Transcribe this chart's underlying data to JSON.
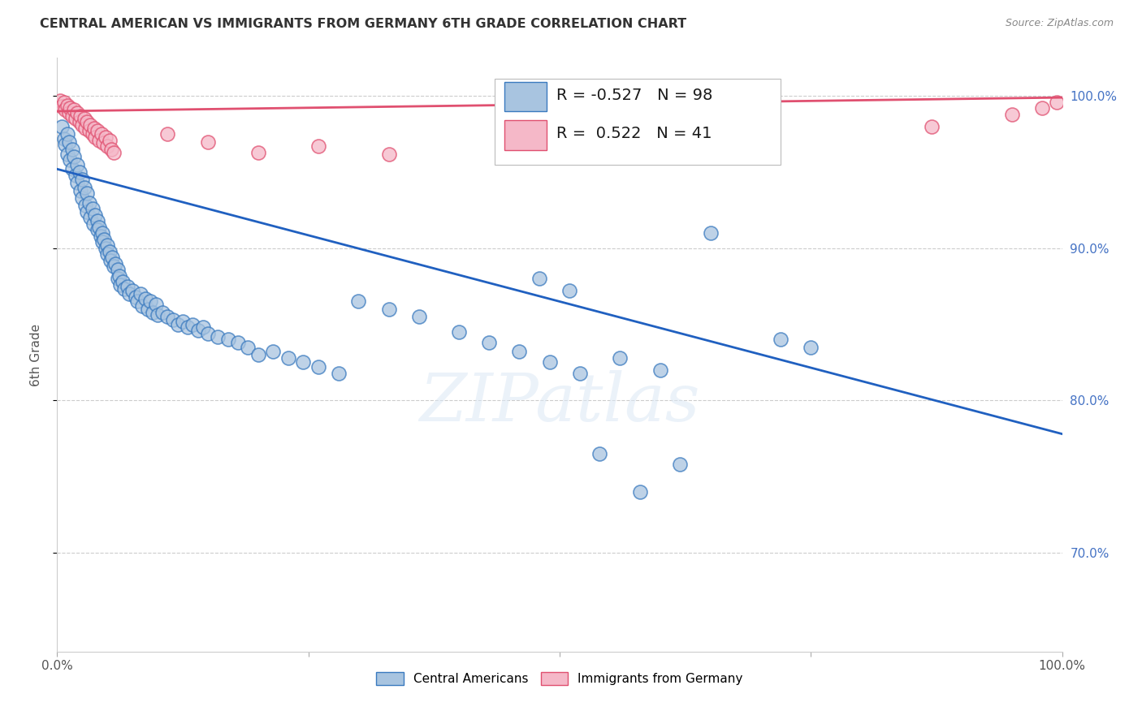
{
  "title": "CENTRAL AMERICAN VS IMMIGRANTS FROM GERMANY 6TH GRADE CORRELATION CHART",
  "source": "Source: ZipAtlas.com",
  "ylabel": "6th Grade",
  "xlim": [
    0.0,
    1.0
  ],
  "ylim": [
    0.635,
    1.025
  ],
  "yticks": [
    0.7,
    0.8,
    0.9,
    1.0
  ],
  "ytick_labels": [
    "70.0%",
    "80.0%",
    "90.0%",
    "100.0%"
  ],
  "xticks": [
    0.0,
    0.25,
    0.5,
    0.75,
    1.0
  ],
  "xtick_labels": [
    "0.0%",
    "",
    "",
    "",
    "100.0%"
  ],
  "r_blue": -0.527,
  "n_blue": 98,
  "r_pink": 0.522,
  "n_pink": 41,
  "blue_color": "#a8c4e0",
  "blue_edge_color": "#3a7abf",
  "pink_color": "#f5b8c8",
  "pink_edge_color": "#e05070",
  "blue_line_color": "#2060c0",
  "pink_line_color": "#e05070",
  "watermark": "ZIPatlas",
  "legend_label_blue": "Central Americans",
  "legend_label_pink": "Immigrants from Germany",
  "blue_line_x0": 0.0,
  "blue_line_y0": 0.952,
  "blue_line_x1": 1.0,
  "blue_line_y1": 0.778,
  "pink_line_x0": 0.0,
  "pink_line_y0": 0.99,
  "pink_line_x1": 1.0,
  "pink_line_y1": 0.999,
  "blue_x": [
    0.005,
    0.007,
    0.008,
    0.01,
    0.01,
    0.012,
    0.013,
    0.015,
    0.015,
    0.017,
    0.018,
    0.02,
    0.02,
    0.022,
    0.023,
    0.025,
    0.025,
    0.027,
    0.028,
    0.03,
    0.03,
    0.032,
    0.033,
    0.035,
    0.036,
    0.038,
    0.04,
    0.04,
    0.042,
    0.043,
    0.045,
    0.045,
    0.047,
    0.048,
    0.05,
    0.05,
    0.052,
    0.053,
    0.055,
    0.056,
    0.058,
    0.06,
    0.06,
    0.062,
    0.063,
    0.065,
    0.067,
    0.07,
    0.072,
    0.075,
    0.078,
    0.08,
    0.083,
    0.085,
    0.088,
    0.09,
    0.093,
    0.095,
    0.098,
    0.1,
    0.105,
    0.11,
    0.115,
    0.12,
    0.125,
    0.13,
    0.135,
    0.14,
    0.145,
    0.15,
    0.16,
    0.17,
    0.18,
    0.19,
    0.2,
    0.215,
    0.23,
    0.245,
    0.26,
    0.28,
    0.3,
    0.33,
    0.36,
    0.4,
    0.43,
    0.46,
    0.49,
    0.52,
    0.56,
    0.6,
    0.48,
    0.51,
    0.65,
    0.72,
    0.75,
    0.62,
    0.58,
    0.54
  ],
  "blue_y": [
    0.98,
    0.972,
    0.968,
    0.975,
    0.962,
    0.97,
    0.958,
    0.965,
    0.952,
    0.96,
    0.948,
    0.955,
    0.943,
    0.95,
    0.938,
    0.945,
    0.933,
    0.94,
    0.928,
    0.936,
    0.924,
    0.93,
    0.92,
    0.926,
    0.916,
    0.922,
    0.918,
    0.912,
    0.914,
    0.908,
    0.91,
    0.904,
    0.906,
    0.9,
    0.902,
    0.896,
    0.898,
    0.892,
    0.894,
    0.888,
    0.89,
    0.886,
    0.88,
    0.882,
    0.876,
    0.878,
    0.873,
    0.875,
    0.87,
    0.872,
    0.868,
    0.865,
    0.87,
    0.862,
    0.867,
    0.86,
    0.865,
    0.858,
    0.863,
    0.856,
    0.858,
    0.855,
    0.853,
    0.85,
    0.852,
    0.848,
    0.85,
    0.846,
    0.848,
    0.844,
    0.842,
    0.84,
    0.838,
    0.835,
    0.83,
    0.832,
    0.828,
    0.825,
    0.822,
    0.818,
    0.865,
    0.86,
    0.855,
    0.845,
    0.838,
    0.832,
    0.825,
    0.818,
    0.828,
    0.82,
    0.88,
    0.872,
    0.91,
    0.84,
    0.835,
    0.758,
    0.74,
    0.765
  ],
  "pink_x": [
    0.003,
    0.005,
    0.007,
    0.008,
    0.01,
    0.012,
    0.013,
    0.015,
    0.017,
    0.018,
    0.02,
    0.022,
    0.023,
    0.025,
    0.027,
    0.028,
    0.03,
    0.032,
    0.033,
    0.035,
    0.037,
    0.038,
    0.04,
    0.042,
    0.044,
    0.046,
    0.048,
    0.05,
    0.052,
    0.054,
    0.056,
    0.11,
    0.15,
    0.2,
    0.26,
    0.33,
    0.68,
    0.87,
    0.95,
    0.98,
    0.995
  ],
  "pink_y": [
    0.997,
    0.993,
    0.996,
    0.991,
    0.994,
    0.989,
    0.992,
    0.987,
    0.991,
    0.985,
    0.989,
    0.983,
    0.987,
    0.981,
    0.985,
    0.979,
    0.983,
    0.977,
    0.981,
    0.975,
    0.979,
    0.973,
    0.977,
    0.971,
    0.975,
    0.969,
    0.973,
    0.967,
    0.971,
    0.965,
    0.963,
    0.975,
    0.97,
    0.963,
    0.967,
    0.962,
    0.975,
    0.98,
    0.988,
    0.992,
    0.996
  ]
}
